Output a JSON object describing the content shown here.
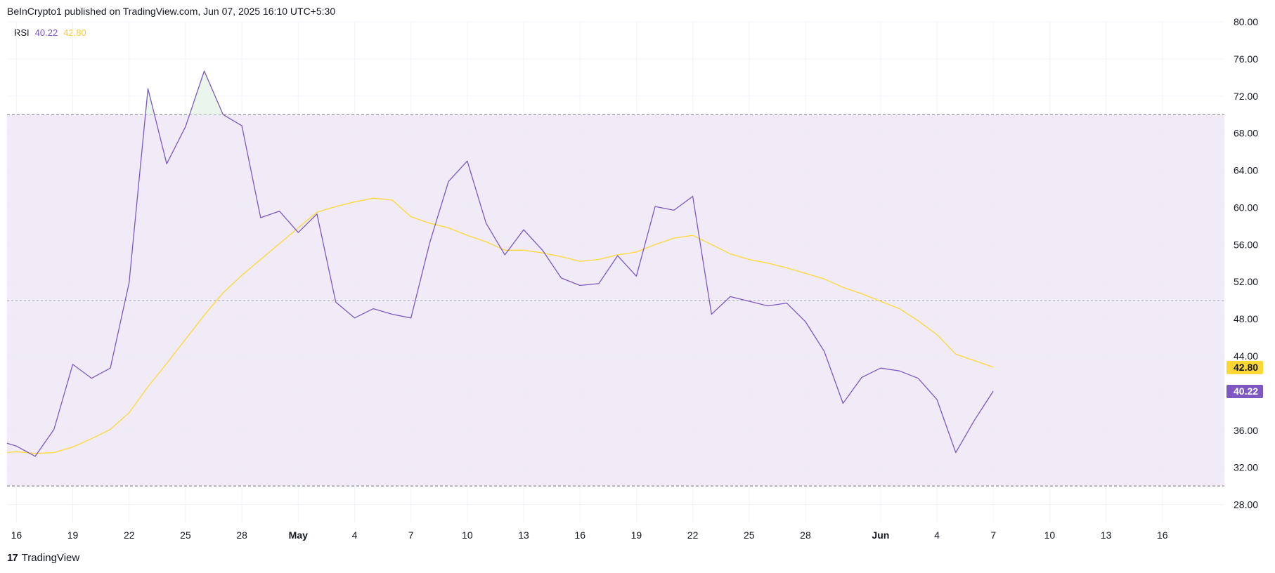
{
  "header": {
    "text": "BeInCrypto1 published on TradingView.com, Jun 07, 2025 16:10 UTC+5:30"
  },
  "legend": {
    "name": "RSI",
    "rsi_value": "40.22",
    "ma_value": "42.80"
  },
  "footer": {
    "brand": "TradingView",
    "logo_text": "17"
  },
  "colors": {
    "rsi": "#7e57c2",
    "ma": "#fdd835",
    "band": "#ede7f6",
    "overbought_fill": "#e8f5e9",
    "grid": "#f0f3fa",
    "dashed": "#787b86"
  },
  "chart_data": {
    "type": "line",
    "title": "",
    "xlabel": "",
    "ylabel": "",
    "ylim": [
      26,
      80
    ],
    "y_ticks": [
      "80.00",
      "76.00",
      "72.00",
      "68.00",
      "64.00",
      "60.00",
      "56.00",
      "52.00",
      "48.00",
      "44.00",
      "36.00",
      "32.00",
      "28.00"
    ],
    "levels": {
      "upper": 70,
      "middle": 50,
      "lower": 30
    },
    "x_ticks": [
      {
        "label": "16",
        "x": 0,
        "bold": false
      },
      {
        "label": "19",
        "x": 3,
        "bold": false
      },
      {
        "label": "22",
        "x": 6,
        "bold": false
      },
      {
        "label": "25",
        "x": 9,
        "bold": false
      },
      {
        "label": "28",
        "x": 12,
        "bold": false
      },
      {
        "label": "May",
        "x": 15,
        "bold": true
      },
      {
        "label": "4",
        "x": 18,
        "bold": false
      },
      {
        "label": "7",
        "x": 21,
        "bold": false
      },
      {
        "label": "10",
        "x": 24,
        "bold": false
      },
      {
        "label": "13",
        "x": 27,
        "bold": false
      },
      {
        "label": "16",
        "x": 30,
        "bold": false
      },
      {
        "label": "19",
        "x": 33,
        "bold": false
      },
      {
        "label": "22",
        "x": 36,
        "bold": false
      },
      {
        "label": "25",
        "x": 39,
        "bold": false
      },
      {
        "label": "28",
        "x": 42,
        "bold": false
      },
      {
        "label": "Jun",
        "x": 46,
        "bold": true
      },
      {
        "label": "4",
        "x": 49,
        "bold": false
      },
      {
        "label": "7",
        "x": 52,
        "bold": false
      },
      {
        "label": "10",
        "x": 55,
        "bold": false
      },
      {
        "label": "13",
        "x": 58,
        "bold": false
      },
      {
        "label": "16",
        "x": 61,
        "bold": false
      }
    ],
    "x_domain": [
      -0.5,
      64.3
    ],
    "series": [
      {
        "name": "RSI",
        "x": [
          -0.5,
          0,
          1,
          2,
          3,
          4,
          5,
          6,
          7,
          8,
          9,
          10,
          11,
          12,
          13,
          14,
          15,
          16,
          17,
          18,
          19,
          20,
          21,
          22,
          23,
          24,
          25,
          26,
          27,
          28,
          29,
          30,
          31,
          32,
          33,
          34,
          35,
          36,
          37,
          38,
          39,
          40,
          41,
          42,
          43,
          44,
          45,
          46,
          47,
          48,
          49,
          50,
          51,
          52
        ],
        "values": [
          34.6,
          34.3,
          33.2,
          36.1,
          43.1,
          41.6,
          42.7,
          51.9,
          72.8,
          64.7,
          68.7,
          74.7,
          70.0,
          68.8,
          58.9,
          59.6,
          57.3,
          59.3,
          49.8,
          48.1,
          49.1,
          48.5,
          48.1,
          56.2,
          62.8,
          65.0,
          58.3,
          54.9,
          57.6,
          55.4,
          52.4,
          51.6,
          51.8,
          54.8,
          52.6,
          60.1,
          59.7,
          61.2,
          48.5,
          50.4,
          49.9,
          49.4,
          49.7,
          47.7,
          44.5,
          38.9,
          41.7,
          42.7,
          42.4,
          41.6,
          39.3,
          33.6,
          37.1,
          40.22
        ]
      },
      {
        "name": "MA",
        "x": [
          -0.5,
          0,
          1,
          2,
          3,
          4,
          5,
          6,
          7,
          8,
          9,
          10,
          11,
          12,
          13,
          14,
          15,
          16,
          17,
          18,
          19,
          20,
          21,
          22,
          23,
          24,
          25,
          26,
          27,
          28,
          29,
          30,
          31,
          32,
          33,
          34,
          35,
          36,
          37,
          38,
          39,
          40,
          41,
          42,
          43,
          44,
          45,
          46,
          47,
          48,
          49,
          50,
          51,
          52
        ],
        "values": [
          33.6,
          33.7,
          33.5,
          33.6,
          34.2,
          35.1,
          36.1,
          37.9,
          40.7,
          43.2,
          45.8,
          48.4,
          50.8,
          52.7,
          54.4,
          56.1,
          57.8,
          59.5,
          60.1,
          60.6,
          61.0,
          60.8,
          59.0,
          58.3,
          57.8,
          57.0,
          56.3,
          55.4,
          55.4,
          55.1,
          54.7,
          54.2,
          54.4,
          54.9,
          55.2,
          56.0,
          56.7,
          57.0,
          56.0,
          55.0,
          54.4,
          54.0,
          53.5,
          52.9,
          52.3,
          51.4,
          50.7,
          49.9,
          49.1,
          47.8,
          46.3,
          44.2,
          43.5,
          42.8
        ]
      }
    ]
  }
}
